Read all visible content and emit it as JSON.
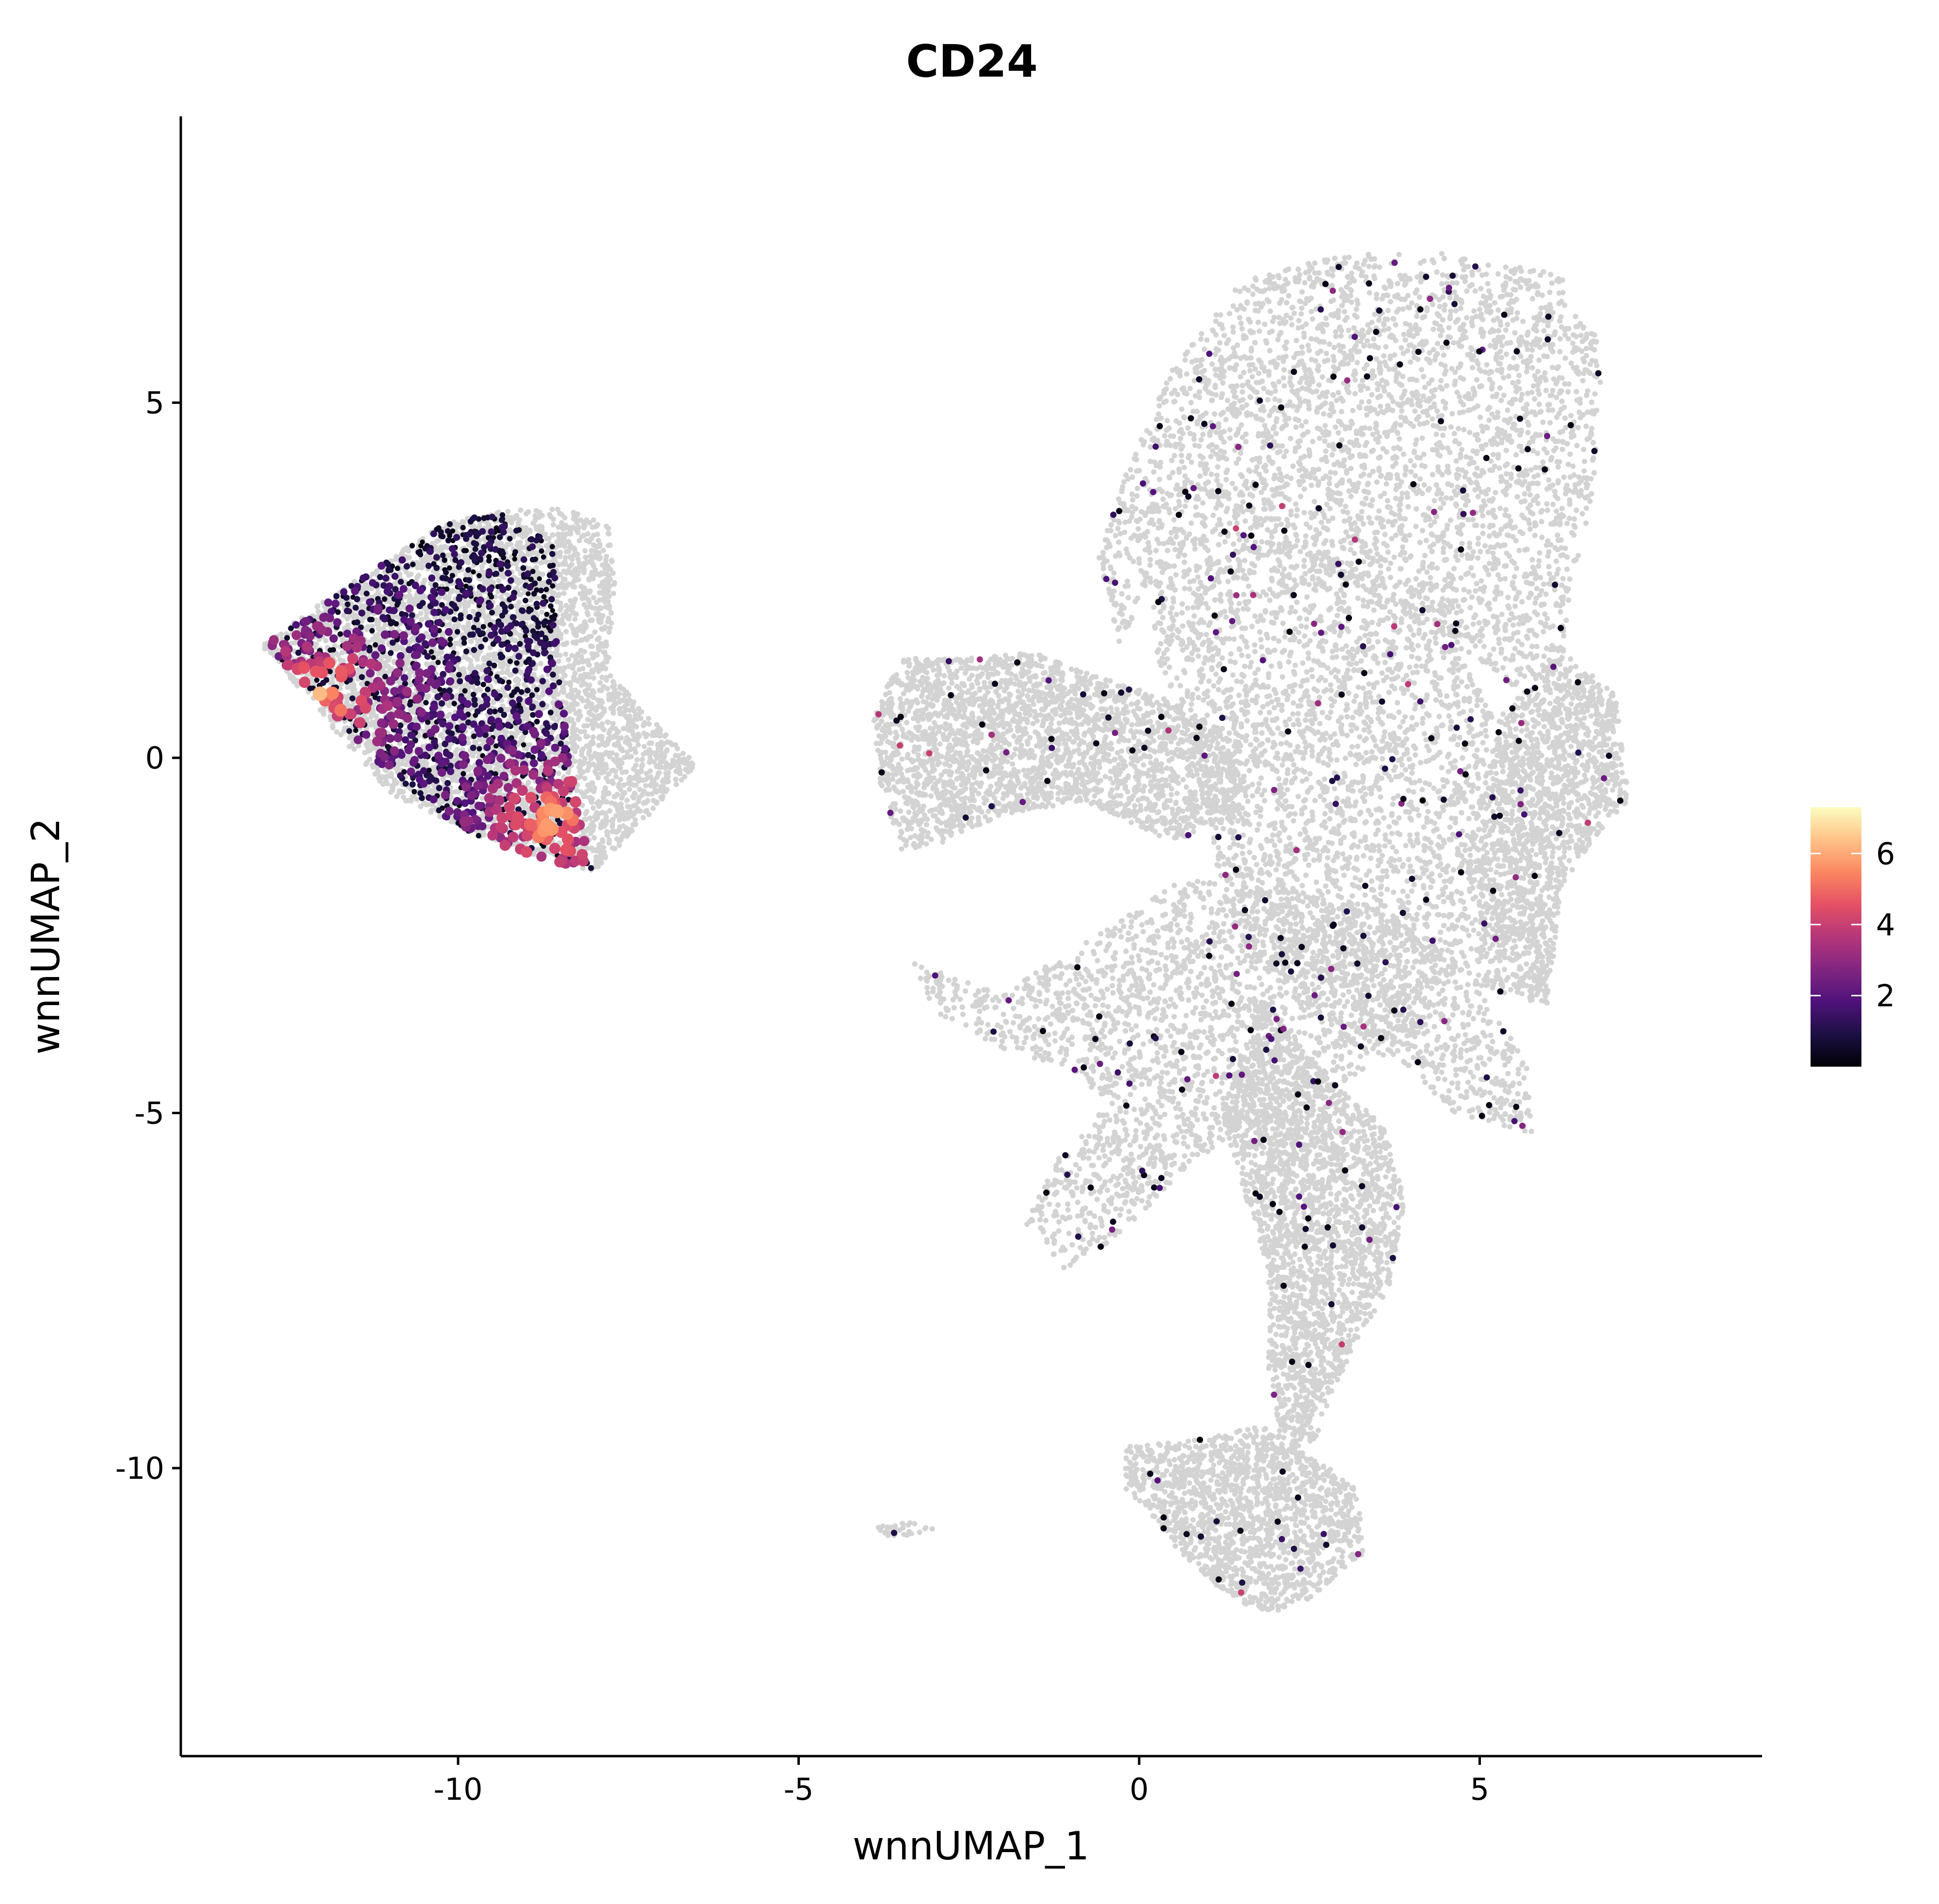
{
  "chart_data": {
    "type": "scatter",
    "title": "CD24",
    "xlabel": "wnnUMAP_1",
    "ylabel": "wnnUMAP_2",
    "xlim": [
      -14,
      9.1
    ],
    "ylim": [
      -14,
      9
    ],
    "x_ticks": [
      -10,
      -5,
      0,
      5
    ],
    "x_tick_labels": [
      "-10",
      "-5",
      "0",
      "5"
    ],
    "y_ticks": [
      5,
      0,
      -5,
      -10
    ],
    "y_tick_labels": [
      "5",
      "0",
      "-5",
      "-10"
    ],
    "grid": false,
    "background_point_color": "#d3d3d3",
    "colorscale": {
      "name": "magma",
      "range": [
        0,
        7.3
      ],
      "ticks": [
        2,
        4,
        6
      ],
      "tick_labels": [
        "2",
        "4",
        "6"
      ],
      "colors": [
        "#000004",
        "#1c1044",
        "#4f127b",
        "#812581",
        "#b5367a",
        "#e55064",
        "#fb8761",
        "#fec287",
        "#fcfdbf"
      ],
      "legend_position": "right"
    },
    "expressing_cluster": {
      "region_polygon": [
        [
          -12.8,
          1.6
        ],
        [
          -11.6,
          2.4
        ],
        [
          -10.2,
          3.3
        ],
        [
          -9.4,
          3.45
        ],
        [
          -8.6,
          3.0
        ],
        [
          -8.5,
          1.0
        ],
        [
          -8.2,
          -1.0
        ],
        [
          -8.0,
          -1.6
        ],
        [
          -9.0,
          -1.35
        ],
        [
          -10.0,
          -1.0
        ],
        [
          -11.5,
          0.2
        ]
      ],
      "high_expression_centers": [
        [
          -8.6,
          -0.9
        ],
        [
          -12.0,
          0.9
        ]
      ]
    },
    "background_regions": [
      {
        "name": "left-cluster",
        "polygon": [
          [
            -12.9,
            1.6
          ],
          [
            -11.5,
            2.5
          ],
          [
            -10.2,
            3.3
          ],
          [
            -9.3,
            3.5
          ],
          [
            -8.3,
            3.5
          ],
          [
            -7.8,
            3.3
          ],
          [
            -7.7,
            2.5
          ],
          [
            -7.8,
            1.2
          ],
          [
            -6.5,
            -0.1
          ],
          [
            -8.0,
            -1.6
          ],
          [
            -9.5,
            -1.2
          ],
          [
            -11.0,
            -0.5
          ],
          [
            -12.0,
            0.6
          ]
        ]
      },
      {
        "name": "upper-mass",
        "polygon": [
          [
            -0.2,
            4.0
          ],
          [
            0.5,
            5.5
          ],
          [
            1.5,
            6.7
          ],
          [
            3.0,
            7.1
          ],
          [
            4.5,
            7.1
          ],
          [
            6.2,
            6.8
          ],
          [
            6.8,
            5.8
          ],
          [
            6.7,
            4.0
          ],
          [
            6.4,
            2.5
          ],
          [
            6.2,
            1.3
          ],
          [
            5.5,
            1.0
          ],
          [
            4.5,
            1.7
          ],
          [
            2.5,
            2.8
          ],
          [
            1.2,
            3.0
          ],
          [
            0.2,
            2.5
          ],
          [
            -0.3,
            1.6
          ],
          [
            -0.6,
            2.8
          ]
        ]
      },
      {
        "name": "right-arm",
        "polygon": [
          [
            5.3,
            0.6
          ],
          [
            6.2,
            1.5
          ],
          [
            7.0,
            0.9
          ],
          [
            7.2,
            -0.6
          ],
          [
            6.7,
            -1.1
          ],
          [
            6.2,
            -1.8
          ],
          [
            6.0,
            -3.5
          ],
          [
            5.0,
            -3.2
          ],
          [
            4.8,
            -1.5
          ],
          [
            5.0,
            -0.6
          ]
        ]
      },
      {
        "name": "left-arm",
        "polygon": [
          [
            -3.9,
            0.6
          ],
          [
            -3.5,
            1.4
          ],
          [
            -2.5,
            1.4
          ],
          [
            -1.6,
            1.5
          ],
          [
            -0.8,
            1.2
          ],
          [
            0.5,
            0.8
          ],
          [
            1.5,
            0.2
          ],
          [
            1.5,
            -0.8
          ],
          [
            0.5,
            -1.2
          ],
          [
            -0.8,
            -0.6
          ],
          [
            -2.0,
            -0.8
          ],
          [
            -2.9,
            -1.2
          ],
          [
            -3.5,
            -1.3
          ],
          [
            -3.8,
            -0.4
          ]
        ]
      },
      {
        "name": "center-body",
        "polygon": [
          [
            0.2,
            2.5
          ],
          [
            1.5,
            3.0
          ],
          [
            3.0,
            2.8
          ],
          [
            4.6,
            1.8
          ],
          [
            5.2,
            0.6
          ],
          [
            4.8,
            -1.5
          ],
          [
            5.0,
            -3.3
          ],
          [
            5.7,
            -4.3
          ],
          [
            5.8,
            -5.3
          ],
          [
            4.6,
            -5.0
          ],
          [
            3.8,
            -4.2
          ],
          [
            3.0,
            -3.8
          ],
          [
            2.1,
            -3.3
          ],
          [
            1.3,
            -2.3
          ],
          [
            1.0,
            -0.8
          ],
          [
            0.6,
            0.6
          ],
          [
            0.2,
            1.6
          ]
        ]
      },
      {
        "name": "diagonal-arm",
        "polygon": [
          [
            -3.3,
            -2.9
          ],
          [
            -2.0,
            -3.3
          ],
          [
            -0.8,
            -2.6
          ],
          [
            0.5,
            -1.8
          ],
          [
            1.4,
            -1.6
          ],
          [
            2.8,
            -2.0
          ],
          [
            4.0,
            -2.2
          ],
          [
            4.6,
            -3.0
          ],
          [
            3.8,
            -4.2
          ],
          [
            2.5,
            -4.8
          ],
          [
            1.5,
            -5.2
          ],
          [
            0.6,
            -5.9
          ],
          [
            -0.4,
            -6.8
          ],
          [
            -1.1,
            -7.2
          ],
          [
            -1.7,
            -6.6
          ],
          [
            -1.2,
            -5.6
          ],
          [
            -0.5,
            -4.9
          ],
          [
            -1.0,
            -4.4
          ],
          [
            -2.0,
            -4.1
          ],
          [
            -3.0,
            -3.6
          ]
        ]
      },
      {
        "name": "lower-stem",
        "polygon": [
          [
            1.8,
            -3.4
          ],
          [
            2.8,
            -4.5
          ],
          [
            3.6,
            -5.2
          ],
          [
            3.9,
            -6.2
          ],
          [
            3.7,
            -7.4
          ],
          [
            3.2,
            -8.2
          ],
          [
            2.8,
            -9.0
          ],
          [
            2.6,
            -9.6
          ],
          [
            2.1,
            -9.8
          ],
          [
            1.9,
            -8.6
          ],
          [
            1.9,
            -7.2
          ],
          [
            1.5,
            -6.0
          ],
          [
            1.2,
            -5.0
          ]
        ]
      },
      {
        "name": "bottom-blob",
        "polygon": [
          [
            -0.2,
            -9.7
          ],
          [
            0.9,
            -9.6
          ],
          [
            1.8,
            -9.4
          ],
          [
            2.5,
            -9.8
          ],
          [
            3.2,
            -10.3
          ],
          [
            3.3,
            -11.2
          ],
          [
            2.8,
            -11.6
          ],
          [
            2.3,
            -12.0
          ],
          [
            1.7,
            -12.0
          ],
          [
            1.2,
            -11.7
          ],
          [
            0.6,
            -11.2
          ],
          [
            0.3,
            -10.8
          ],
          [
            -0.2,
            -10.3
          ]
        ]
      },
      {
        "name": "small-island",
        "polygon": [
          [
            -3.9,
            -10.8
          ],
          [
            -3.4,
            -10.75
          ],
          [
            -3.0,
            -10.85
          ],
          [
            -3.4,
            -10.95
          ],
          [
            -3.9,
            -10.95
          ]
        ]
      }
    ]
  }
}
